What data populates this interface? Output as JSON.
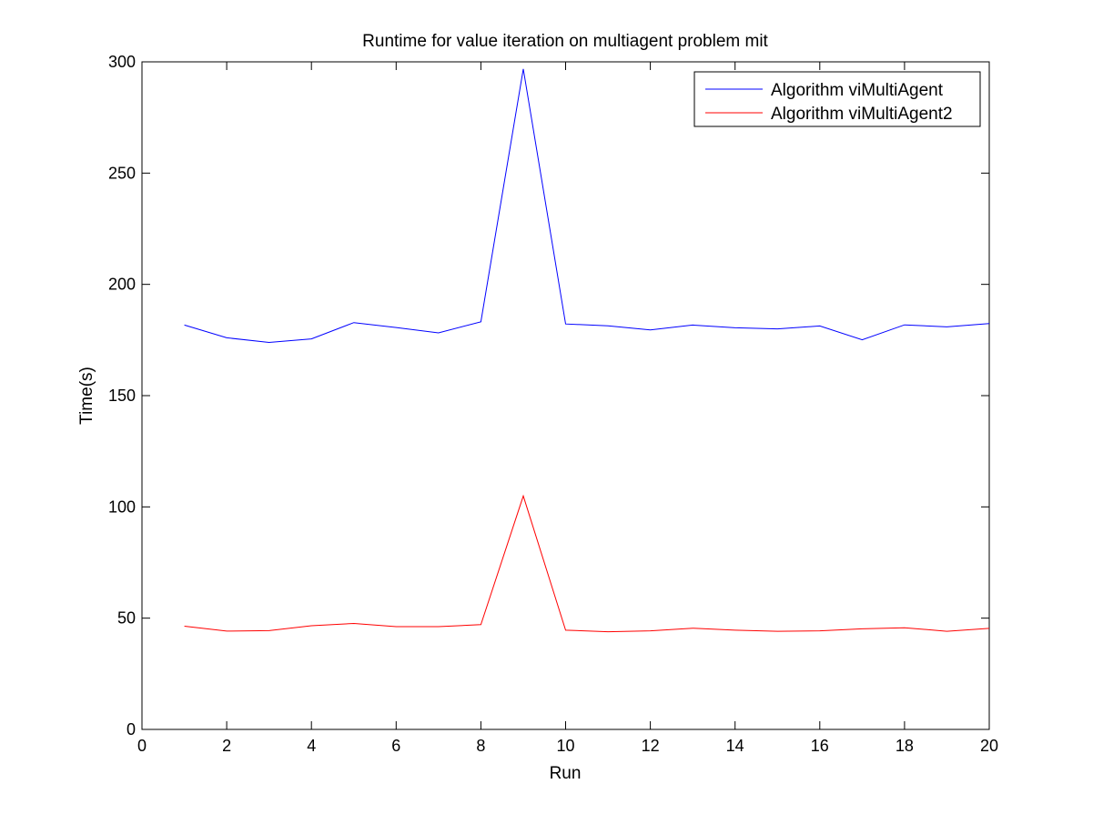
{
  "chart_data": {
    "type": "line",
    "title": "Runtime for value iteration on multiagent problem mit",
    "xlabel": "Run",
    "ylabel": "Time(s)",
    "xlim": [
      0,
      20
    ],
    "ylim": [
      0,
      300
    ],
    "xticks": [
      0,
      2,
      4,
      6,
      8,
      10,
      12,
      14,
      16,
      18,
      20
    ],
    "yticks": [
      0,
      50,
      100,
      150,
      200,
      250,
      300
    ],
    "grid": false,
    "legend_position": "top-right",
    "x": [
      1,
      2,
      3,
      4,
      5,
      6,
      7,
      8,
      9,
      10,
      11,
      12,
      13,
      14,
      15,
      16,
      17,
      18,
      19,
      20
    ],
    "series": [
      {
        "name": "Algorithm viMultiAgent",
        "color": "#0000ff",
        "values": [
          181.7,
          176,
          173.9,
          175.5,
          182.8,
          180.6,
          178.2,
          183.2,
          296.8,
          182.2,
          181.4,
          179.5,
          181.7,
          180.5,
          180,
          181.3,
          175.1,
          181.8,
          180.9,
          182.4
        ]
      },
      {
        "name": "Algorithm viMultiAgent2",
        "color": "#ff0000",
        "values": [
          46.4,
          44.2,
          44.4,
          46.6,
          47.6,
          46.2,
          46.2,
          47.1,
          104.9,
          44.6,
          43.9,
          44.3,
          45.5,
          44.6,
          44.1,
          44.3,
          45.2,
          45.7,
          44.1,
          45.4
        ]
      }
    ]
  }
}
